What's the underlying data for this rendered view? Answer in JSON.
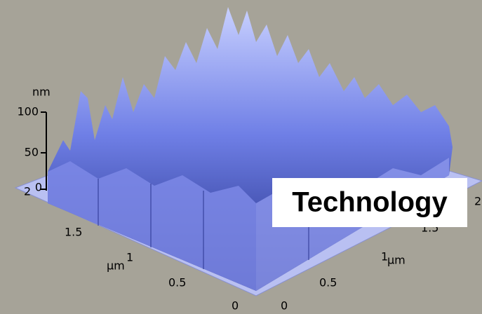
{
  "z_axis": {
    "unit": "nm",
    "ticks": [
      "100",
      "50",
      "0"
    ]
  },
  "left_axis": {
    "unit": "µm",
    "ticks": [
      "2",
      "1.5",
      "1",
      "0.5",
      "0"
    ]
  },
  "right_axis": {
    "unit": "µm",
    "ticks": [
      "0",
      "0.5",
      "1",
      "1.5",
      "2"
    ]
  },
  "overlay": {
    "text": "Technology"
  }
}
